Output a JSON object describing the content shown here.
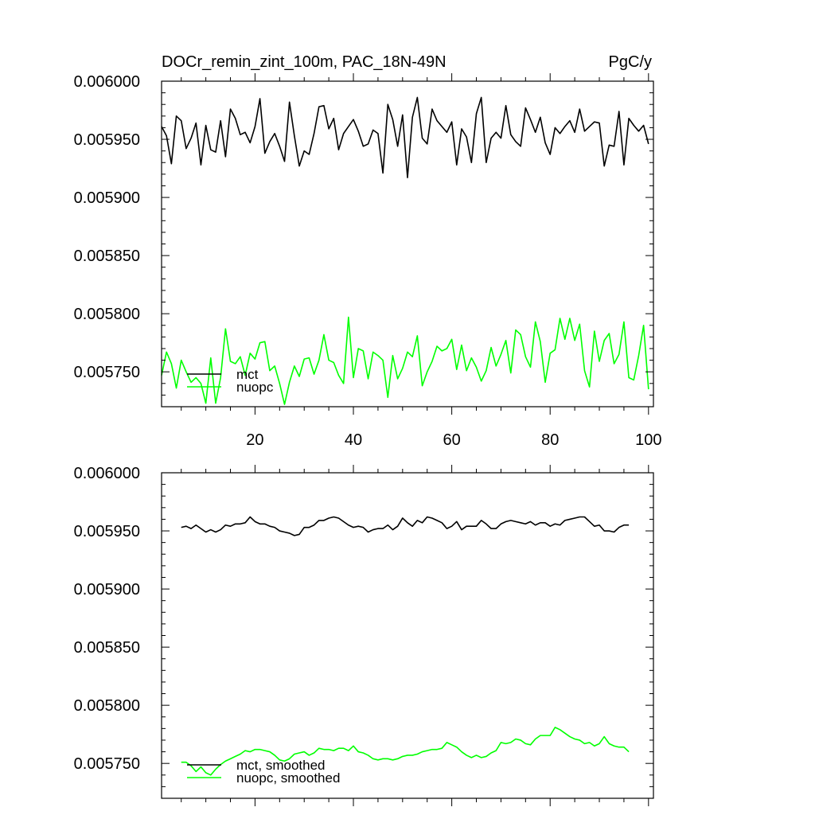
{
  "chart_data": [
    {
      "type": "line",
      "title": "DOCr_remin_zint_100m, PAC_18N-49N",
      "units": "PgC/y",
      "xlim": [
        1,
        101
      ],
      "ylim": [
        0.00572,
        0.006
      ],
      "xticks": [
        20,
        40,
        60,
        80,
        100
      ],
      "xtick_labels": [
        "20",
        "40",
        "60",
        "80",
        "100"
      ],
      "yticks": [
        0.00575,
        0.0058,
        0.00585,
        0.0059,
        0.00595,
        0.006
      ],
      "ytick_labels": [
        "0.005750",
        "0.005800",
        "0.005850",
        "0.005900",
        "0.005950",
        "0.006000"
      ],
      "grid": false,
      "legend_position": "bottom-left",
      "x_start": 1,
      "series": [
        {
          "name": "mct",
          "color": "#000000",
          "values": [
            0.005961,
            0.005953,
            0.005929,
            0.00597,
            0.005966,
            0.005942,
            0.005951,
            0.005964,
            0.005928,
            0.005962,
            0.005941,
            0.005939,
            0.005966,
            0.005935,
            0.005976,
            0.005968,
            0.005954,
            0.005956,
            0.005947,
            0.005961,
            0.005985,
            0.005938,
            0.005948,
            0.005955,
            0.005944,
            0.005931,
            0.005982,
            0.005953,
            0.005927,
            0.00594,
            0.005937,
            0.005955,
            0.005978,
            0.005979,
            0.005959,
            0.005968,
            0.005941,
            0.005955,
            0.005961,
            0.005967,
            0.005957,
            0.005944,
            0.005946,
            0.005958,
            0.005955,
            0.005921,
            0.00598,
            0.005967,
            0.005944,
            0.005971,
            0.005917,
            0.005969,
            0.005986,
            0.005951,
            0.005946,
            0.005976,
            0.005966,
            0.005961,
            0.005956,
            0.005965,
            0.005928,
            0.005959,
            0.005952,
            0.00593,
            0.005972,
            0.005986,
            0.00593,
            0.005951,
            0.005956,
            0.005951,
            0.005979,
            0.005954,
            0.005948,
            0.005944,
            0.005977,
            0.005967,
            0.005956,
            0.005969,
            0.005947,
            0.005937,
            0.00596,
            0.005955,
            0.005961,
            0.005966,
            0.005956,
            0.005976,
            0.005957,
            0.005961,
            0.005965,
            0.005964,
            0.005927,
            0.005945,
            0.005944,
            0.005974,
            0.005928,
            0.005968,
            0.005962,
            0.005957,
            0.005962,
            0.005946
          ]
        },
        {
          "name": "nuopc",
          "color": "#00ff00",
          "values": [
            0.005747,
            0.005767,
            0.005757,
            0.005736,
            0.00576,
            0.00575,
            0.005741,
            0.005745,
            0.00574,
            0.005723,
            0.005762,
            0.005723,
            0.005745,
            0.005787,
            0.005759,
            0.005757,
            0.005763,
            0.005747,
            0.005766,
            0.005761,
            0.005775,
            0.005776,
            0.005751,
            0.005755,
            0.00574,
            0.005722,
            0.005741,
            0.005755,
            0.005746,
            0.005761,
            0.005762,
            0.005748,
            0.00576,
            0.005782,
            0.00576,
            0.005758,
            0.005747,
            0.00574,
            0.005797,
            0.005745,
            0.00577,
            0.005768,
            0.005744,
            0.005767,
            0.005764,
            0.00576,
            0.005728,
            0.005764,
            0.005744,
            0.005753,
            0.005767,
            0.005763,
            0.005781,
            0.005738,
            0.00575,
            0.005759,
            0.005772,
            0.005768,
            0.00577,
            0.005778,
            0.005752,
            0.005773,
            0.005751,
            0.005762,
            0.005754,
            0.005742,
            0.005751,
            0.005771,
            0.005755,
            0.005765,
            0.005777,
            0.005749,
            0.005786,
            0.005782,
            0.005763,
            0.005754,
            0.005793,
            0.005776,
            0.005741,
            0.005766,
            0.005769,
            0.005796,
            0.005778,
            0.005796,
            0.005777,
            0.005791,
            0.005751,
            0.005737,
            0.005785,
            0.005759,
            0.005777,
            0.005783,
            0.005757,
            0.005765,
            0.005793,
            0.005745,
            0.005743,
            0.005764,
            0.00579,
            0.005735
          ]
        }
      ]
    },
    {
      "type": "line",
      "title": "",
      "xlim": [
        1,
        101
      ],
      "ylim": [
        0.00572,
        0.006
      ],
      "xticks": [
        20,
        40,
        60,
        80,
        100
      ],
      "xtick_labels": [],
      "yticks": [
        0.00575,
        0.0058,
        0.00585,
        0.0059,
        0.00595,
        0.006
      ],
      "ytick_labels": [
        "0.005750",
        "0.005800",
        "0.005850",
        "0.005900",
        "0.005950",
        "0.006000"
      ],
      "grid": false,
      "legend_position": "bottom-left",
      "x_start": 5,
      "series": [
        {
          "name": "mct, smoothed",
          "color": "#000000",
          "values": [
            0.005953,
            0.005954,
            0.005952,
            0.005955,
            0.005952,
            0.005949,
            0.005951,
            0.005949,
            0.005951,
            0.005955,
            0.005954,
            0.005956,
            0.005956,
            0.005957,
            0.005962,
            0.005958,
            0.005956,
            0.005956,
            0.005954,
            0.005953,
            0.00595,
            0.005949,
            0.005948,
            0.005946,
            0.005947,
            0.005953,
            0.005953,
            0.005955,
            0.005959,
            0.005959,
            0.005961,
            0.005962,
            0.005961,
            0.005958,
            0.005955,
            0.005953,
            0.005954,
            0.005953,
            0.005949,
            0.005951,
            0.005952,
            0.005952,
            0.005955,
            0.005951,
            0.005954,
            0.005961,
            0.005957,
            0.005954,
            0.005959,
            0.005957,
            0.005962,
            0.005961,
            0.005959,
            0.005957,
            0.005952,
            0.005954,
            0.005958,
            0.005951,
            0.005954,
            0.005954,
            0.005954,
            0.005959,
            0.005956,
            0.005952,
            0.005952,
            0.005956,
            0.005958,
            0.005959,
            0.005958,
            0.005957,
            0.005956,
            0.005958,
            0.005955,
            0.005957,
            0.005957,
            0.005954,
            0.005956,
            0.005955,
            0.005959,
            0.00596,
            0.005961,
            0.005962,
            0.005962,
            0.005958,
            0.005954,
            0.005955,
            0.00595,
            0.00595,
            0.005949,
            0.005953,
            0.005955,
            0.005955
          ]
        },
        {
          "name": "nuopc, smoothed",
          "color": "#00ff00",
          "values": [
            0.005751,
            0.005751,
            0.005748,
            0.005743,
            0.005747,
            0.005742,
            0.00574,
            0.005745,
            0.005749,
            0.005752,
            0.005754,
            0.005756,
            0.005758,
            0.005761,
            0.00576,
            0.005762,
            0.005762,
            0.005761,
            0.00576,
            0.005757,
            0.005753,
            0.005752,
            0.005754,
            0.005758,
            0.005759,
            0.00576,
            0.005757,
            0.005759,
            0.005763,
            0.005762,
            0.005762,
            0.005761,
            0.005763,
            0.005763,
            0.005761,
            0.005765,
            0.00576,
            0.005759,
            0.005757,
            0.005754,
            0.005753,
            0.005754,
            0.005754,
            0.005753,
            0.005754,
            0.005756,
            0.005757,
            0.005757,
            0.005758,
            0.00576,
            0.005761,
            0.005762,
            0.005762,
            0.005763,
            0.005768,
            0.005766,
            0.005764,
            0.00576,
            0.005757,
            0.005755,
            0.005757,
            0.005755,
            0.005756,
            0.005759,
            0.005761,
            0.005768,
            0.005767,
            0.005768,
            0.005771,
            0.00577,
            0.005767,
            0.005766,
            0.005771,
            0.005774,
            0.005774,
            0.005774,
            0.005781,
            0.005779,
            0.005776,
            0.005773,
            0.005771,
            0.00577,
            0.005767,
            0.005768,
            0.005765,
            0.005767,
            0.005773,
            0.005767,
            0.005765,
            0.005764,
            0.005764,
            0.00576
          ]
        }
      ]
    }
  ]
}
